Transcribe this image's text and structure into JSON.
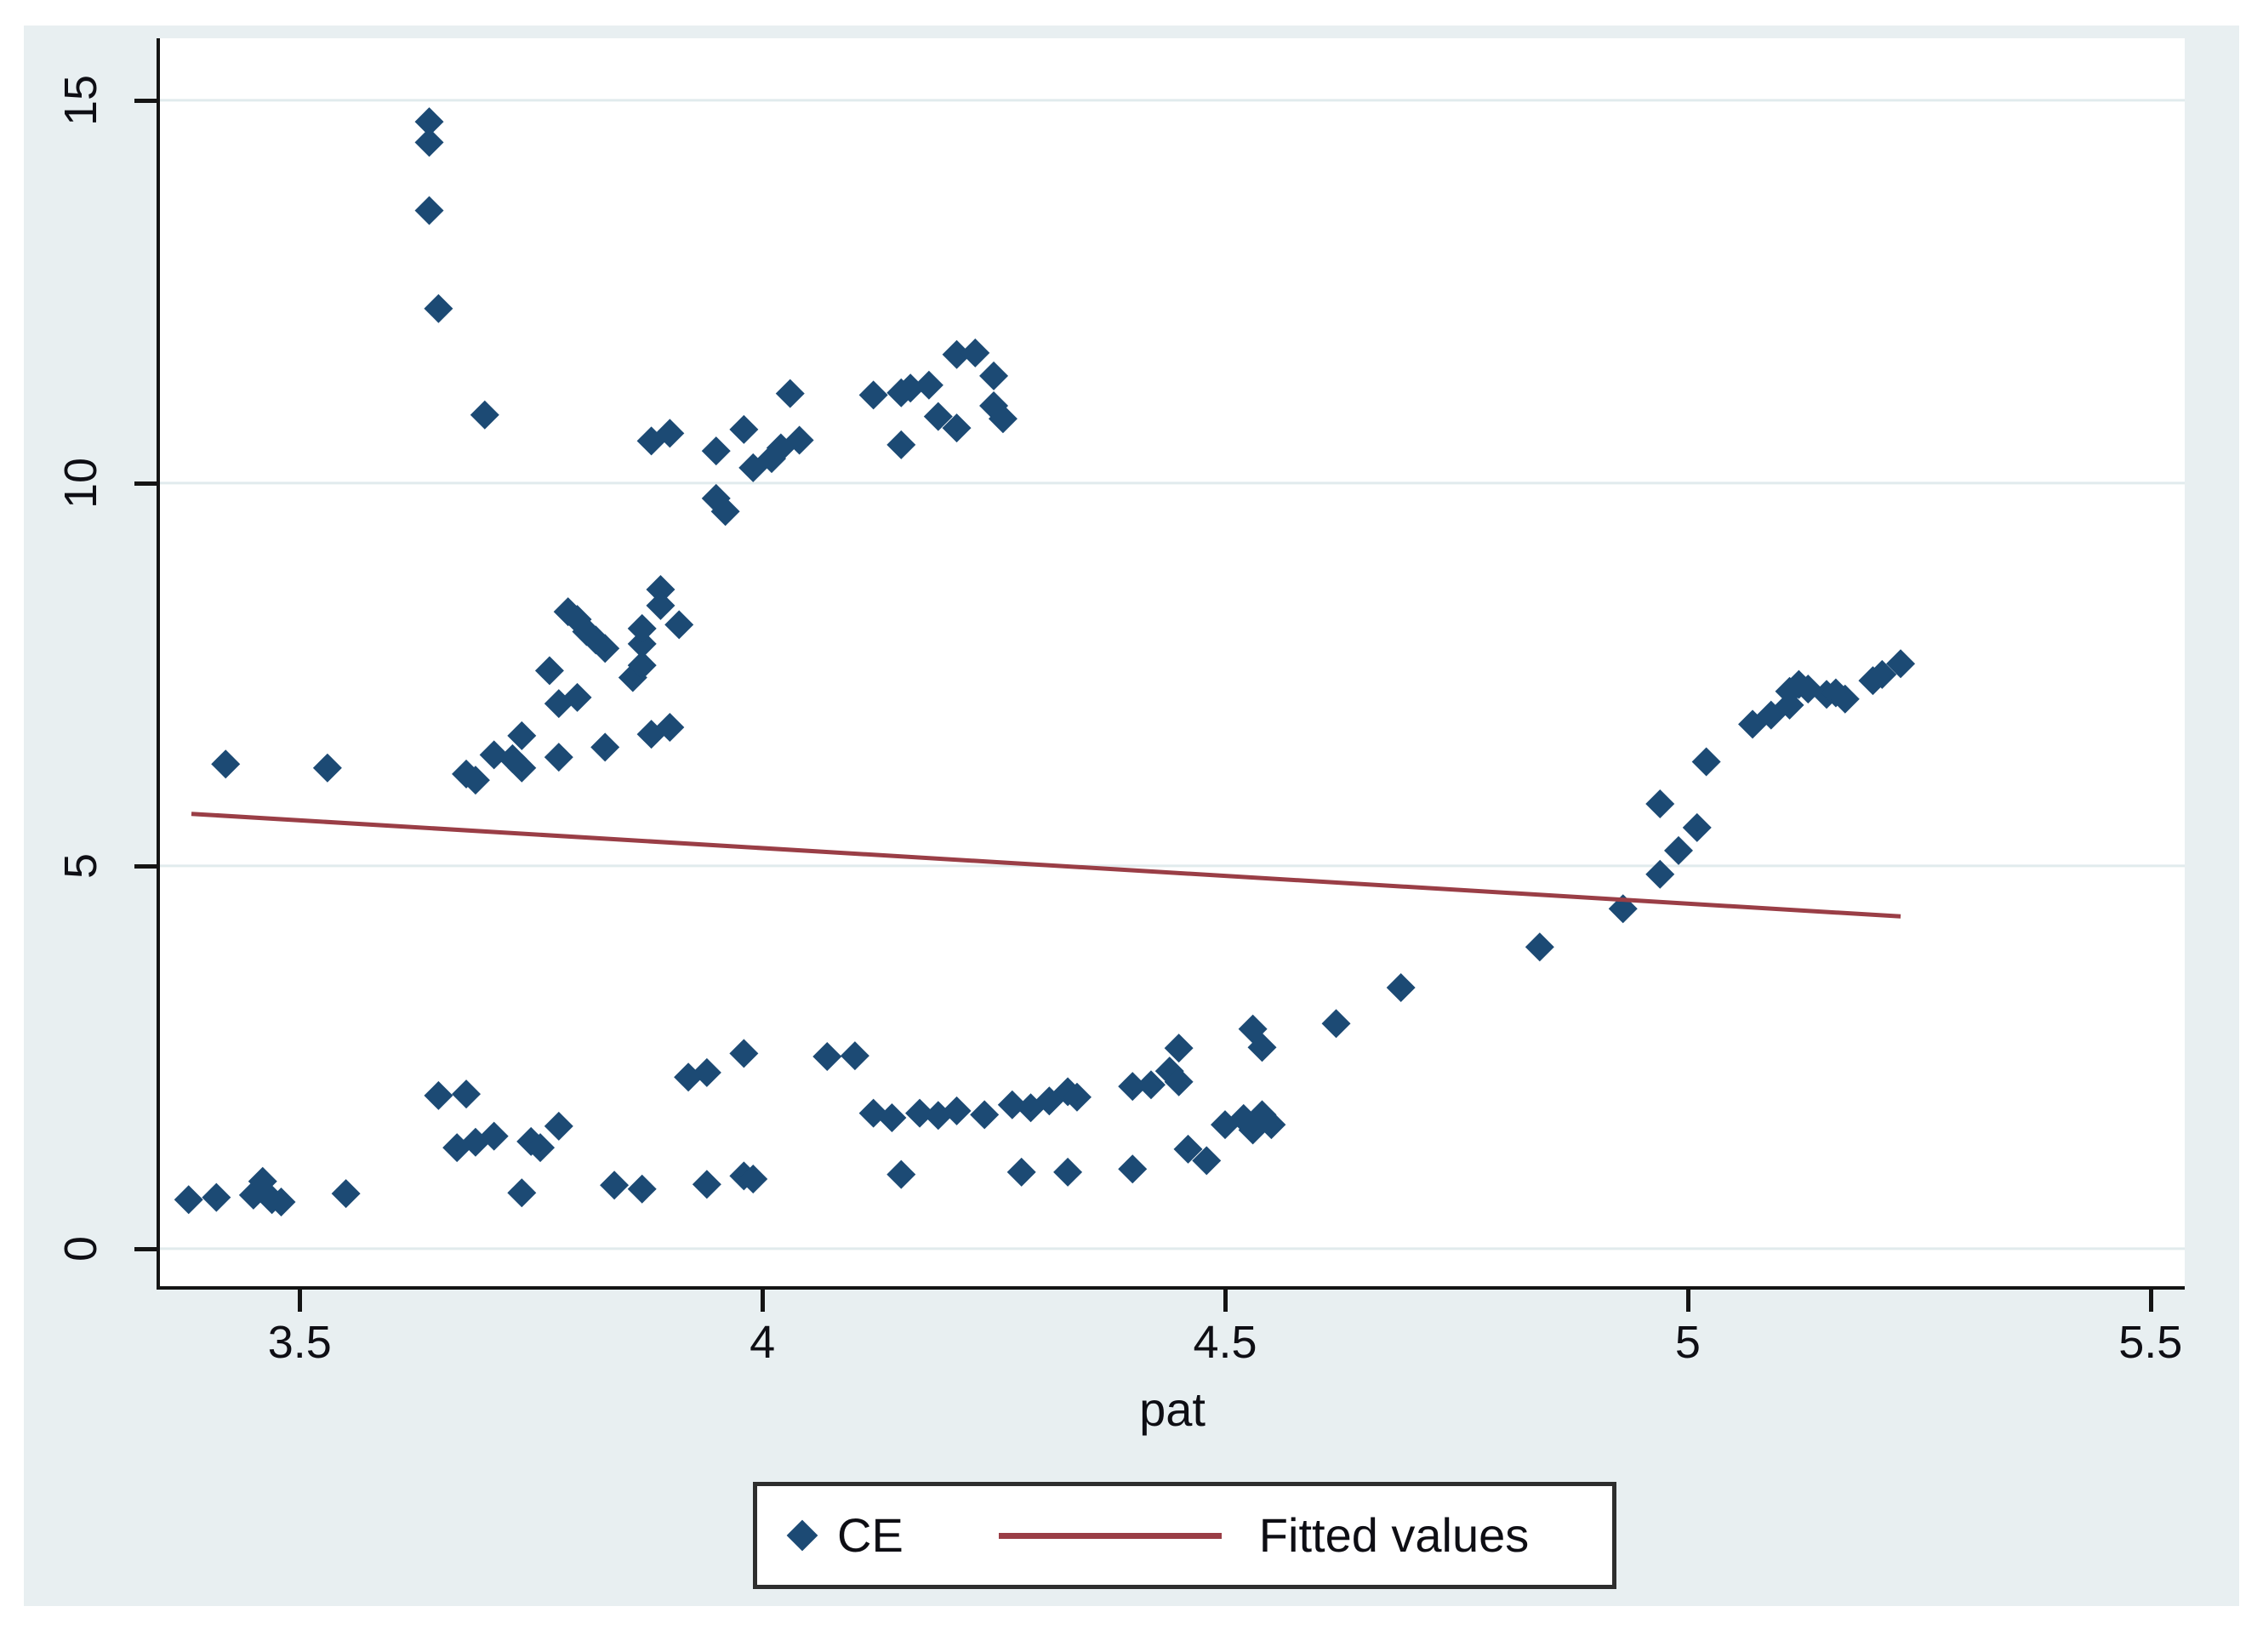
{
  "colors": {
    "figure_background": "#e8eff1",
    "plot_background": "#ffffff",
    "gridline": "#e1ebed",
    "axis": "#141414",
    "text": "#0e0e14",
    "marker": "#1c4a74",
    "fitted_line": "#9a3e46",
    "legend_border": "#2e2e2e"
  },
  "chart_data": {
    "type": "scatter",
    "title": "",
    "xlabel": "pat",
    "ylabel": "",
    "xlim": [
      3.349,
      5.537
    ],
    "ylim": [
      -0.49,
      15.81
    ],
    "grid": "horizontal-only",
    "legend_position": "bottom-center",
    "x_ticks": [
      {
        "value": 3.5,
        "label": "3.5"
      },
      {
        "value": 4,
        "label": "4"
      },
      {
        "value": 4.5,
        "label": "4.5"
      },
      {
        "value": 5,
        "label": "5"
      },
      {
        "value": 5.5,
        "label": "5.5"
      }
    ],
    "y_ticks": [
      {
        "value": 0,
        "label": "0"
      },
      {
        "value": 5,
        "label": "5"
      },
      {
        "value": 10,
        "label": "10"
      },
      {
        "value": 15,
        "label": "15"
      }
    ],
    "legend": [
      {
        "label": "CE",
        "marker": "diamond"
      },
      {
        "label": "Fitted values",
        "marker": "line"
      }
    ],
    "series": [
      {
        "name": "CE",
        "type": "scatter",
        "marker": "diamond",
        "points": [
          [
            3.38,
            0.64
          ],
          [
            3.41,
            0.67
          ],
          [
            3.45,
            0.7
          ],
          [
            3.46,
            0.88
          ],
          [
            3.47,
            0.64
          ],
          [
            3.48,
            0.61
          ],
          [
            3.55,
            0.72
          ],
          [
            3.42,
            6.33
          ],
          [
            3.53,
            6.28
          ],
          [
            3.64,
            14.72
          ],
          [
            3.64,
            14.45
          ],
          [
            3.64,
            13.56
          ],
          [
            3.65,
            12.28
          ],
          [
            3.7,
            10.89
          ],
          [
            3.65,
            2.0
          ],
          [
            3.68,
            2.02
          ],
          [
            3.67,
            1.32
          ],
          [
            3.69,
            1.39
          ],
          [
            3.71,
            1.47
          ],
          [
            3.75,
            1.4
          ],
          [
            3.76,
            1.32
          ],
          [
            3.78,
            1.6
          ],
          [
            3.74,
            0.73
          ],
          [
            3.68,
            6.2
          ],
          [
            3.69,
            6.12
          ],
          [
            3.71,
            6.45
          ],
          [
            3.73,
            6.4
          ],
          [
            3.74,
            6.28
          ],
          [
            3.74,
            6.7
          ],
          [
            3.77,
            7.55
          ],
          [
            3.78,
            7.12
          ],
          [
            3.8,
            7.2
          ],
          [
            3.78,
            6.42
          ],
          [
            3.79,
            8.32
          ],
          [
            3.8,
            8.22
          ],
          [
            3.81,
            8.06
          ],
          [
            3.82,
            7.95
          ],
          [
            3.83,
            7.84
          ],
          [
            3.83,
            6.55
          ],
          [
            3.86,
            7.46
          ],
          [
            3.87,
            7.62
          ],
          [
            3.87,
            7.9
          ],
          [
            3.87,
            8.1
          ],
          [
            3.89,
            8.61
          ],
          [
            3.89,
            8.4
          ],
          [
            3.91,
            8.15
          ],
          [
            3.88,
            6.72
          ],
          [
            3.9,
            6.81
          ],
          [
            3.84,
            0.83
          ],
          [
            3.87,
            0.78
          ],
          [
            3.94,
            0.84
          ],
          [
            3.98,
            0.95
          ],
          [
            3.99,
            0.91
          ],
          [
            3.92,
            2.24
          ],
          [
            3.94,
            2.3
          ],
          [
            3.98,
            2.55
          ],
          [
            4.07,
            2.51
          ],
          [
            4.1,
            2.52
          ],
          [
            3.88,
            10.55
          ],
          [
            3.9,
            10.65
          ],
          [
            3.95,
            10.42
          ],
          [
            3.95,
            9.8
          ],
          [
            3.96,
            9.63
          ],
          [
            3.98,
            10.7
          ],
          [
            3.99,
            10.2
          ],
          [
            4.01,
            10.32
          ],
          [
            4.02,
            10.46
          ],
          [
            4.04,
            10.56
          ],
          [
            4.03,
            11.17
          ],
          [
            4.12,
            11.15
          ],
          [
            4.15,
            11.18
          ],
          [
            4.16,
            11.24
          ],
          [
            4.18,
            11.28
          ],
          [
            4.21,
            11.68
          ],
          [
            4.23,
            11.7
          ],
          [
            4.25,
            11.4
          ],
          [
            4.19,
            10.87
          ],
          [
            4.21,
            10.72
          ],
          [
            4.15,
            10.5
          ],
          [
            4.25,
            11.01
          ],
          [
            4.26,
            10.84
          ],
          [
            4.12,
            1.77
          ],
          [
            4.14,
            1.71
          ],
          [
            4.17,
            1.77
          ],
          [
            4.19,
            1.74
          ],
          [
            4.21,
            1.8
          ],
          [
            4.24,
            1.75
          ],
          [
            4.27,
            1.88
          ],
          [
            4.29,
            1.84
          ],
          [
            4.31,
            1.93
          ],
          [
            4.33,
            2.05
          ],
          [
            4.34,
            1.98
          ],
          [
            4.15,
            0.97
          ],
          [
            4.28,
            1.0
          ],
          [
            4.33,
            1.0
          ],
          [
            4.4,
            1.04
          ],
          [
            4.4,
            2.12
          ],
          [
            4.42,
            2.14
          ],
          [
            4.44,
            2.32
          ],
          [
            4.45,
            2.62
          ],
          [
            4.45,
            2.18
          ],
          [
            4.46,
            1.3
          ],
          [
            4.48,
            1.15
          ],
          [
            4.5,
            1.62
          ],
          [
            4.52,
            1.7
          ],
          [
            4.53,
            1.55
          ],
          [
            4.54,
            1.75
          ],
          [
            4.55,
            1.62
          ],
          [
            4.53,
            2.87
          ],
          [
            4.54,
            2.63
          ],
          [
            4.62,
            2.94
          ],
          [
            4.69,
            3.41
          ],
          [
            4.84,
            3.94
          ],
          [
            4.93,
            4.44
          ],
          [
            4.97,
            4.89
          ],
          [
            4.99,
            5.2
          ],
          [
            5.01,
            5.5
          ],
          [
            4.97,
            5.81
          ],
          [
            5.02,
            6.36
          ],
          [
            5.07,
            6.85
          ],
          [
            5.09,
            6.97
          ],
          [
            5.11,
            7.1
          ],
          [
            5.11,
            7.28
          ],
          [
            5.12,
            7.37
          ],
          [
            5.13,
            7.31
          ],
          [
            5.15,
            7.24
          ],
          [
            5.16,
            7.26
          ],
          [
            5.17,
            7.18
          ],
          [
            5.2,
            7.42
          ],
          [
            5.21,
            7.5
          ],
          [
            5.23,
            7.64
          ]
        ]
      },
      {
        "name": "Fitted values",
        "type": "line",
        "points": [
          [
            3.383,
            5.68
          ],
          [
            5.23,
            4.34
          ]
        ]
      }
    ]
  }
}
